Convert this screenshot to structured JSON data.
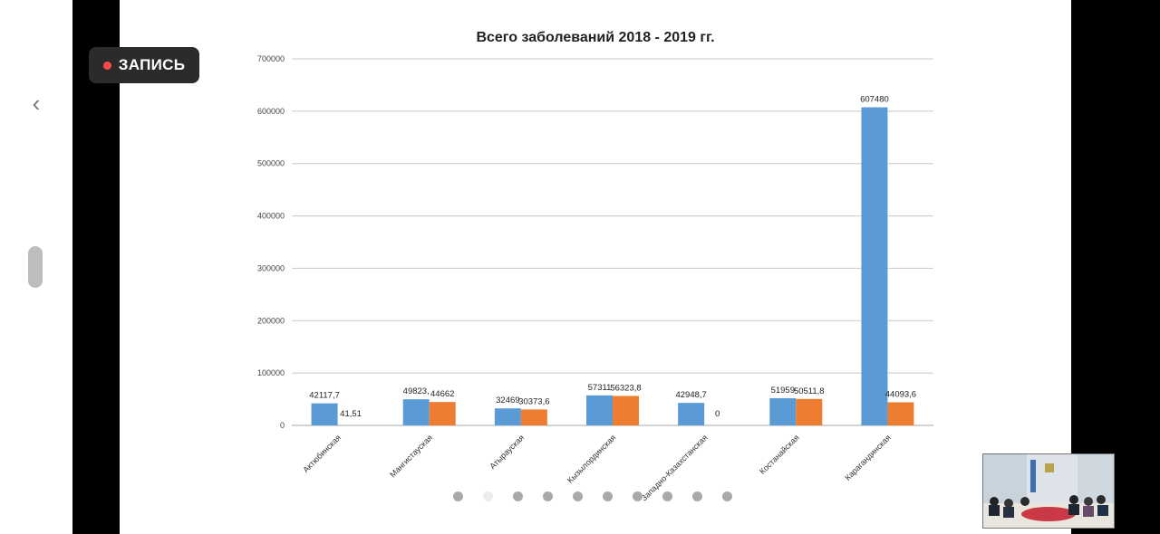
{
  "recording": {
    "label": "ЗАПИСЬ",
    "dot_color": "#ff4b4b"
  },
  "navigation": {
    "back_icon": "chevron-left-icon",
    "back_glyph": "‹"
  },
  "slide_pager": {
    "count": 10,
    "active_index": 1
  },
  "chart_data": {
    "type": "bar",
    "title": "Всего заболеваний 2018 - 2019 гг.",
    "categories": [
      "Актюбинская",
      "Мангистауская",
      "Атырауская",
      "Кызылординская",
      "Западно-Казахстанская",
      "Костанайская",
      "Карагандинская"
    ],
    "series": [
      {
        "values": [
          42117.7,
          49823,
          32469,
          57311,
          42948.7,
          51959,
          607480
        ],
        "labels": [
          "42117,7",
          "49823,",
          "32469",
          "57311",
          "42948,7",
          "51959",
          "607480"
        ],
        "color": "#5b9bd5"
      },
      {
        "values": [
          41.51,
          44662,
          30373.6,
          56323.8,
          0,
          50511.8,
          44093.6
        ],
        "labels": [
          "41,51",
          "44662",
          "30373,6",
          "56323,8",
          "0",
          "50511,8",
          "44093,6"
        ],
        "color": "#ed7d31"
      }
    ],
    "ylim": [
      0,
      700000
    ],
    "yticks": [
      "0",
      "100000",
      "200000",
      "300000",
      "400000",
      "500000",
      "600000",
      "700000"
    ],
    "grid": true,
    "legend": "none"
  }
}
